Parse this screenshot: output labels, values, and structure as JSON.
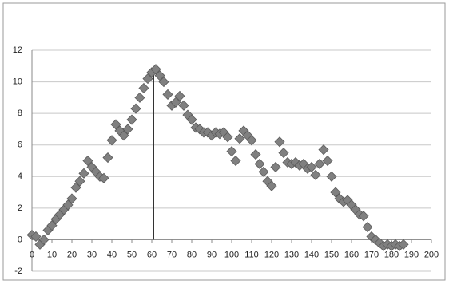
{
  "chart_data": {
    "type": "scatter",
    "x": [
      0,
      2,
      4,
      6,
      8,
      10,
      12,
      14,
      16,
      18,
      20,
      22,
      24,
      26,
      28,
      30,
      32,
      34,
      36,
      38,
      40,
      42,
      44,
      46,
      48,
      50,
      52,
      54,
      56,
      58,
      60,
      62,
      64,
      66,
      68,
      70,
      72,
      74,
      76,
      78,
      80,
      82,
      84,
      86,
      88,
      90,
      92,
      94,
      96,
      98,
      100,
      102,
      104,
      106,
      108,
      110,
      112,
      114,
      116,
      118,
      120,
      122,
      124,
      126,
      128,
      130,
      132,
      134,
      136,
      138,
      140,
      142,
      144,
      146,
      148,
      150,
      152,
      154,
      156,
      158,
      160,
      162,
      164,
      166,
      168,
      170,
      172,
      174,
      176,
      178,
      180,
      182,
      184,
      186
    ],
    "values": [
      0.3,
      0.2,
      -0.3,
      0,
      0.6,
      0.9,
      1.3,
      1.6,
      1.9,
      2.2,
      2.6,
      3.3,
      3.7,
      4.2,
      5.0,
      4.6,
      4.3,
      4.0,
      3.9,
      5.2,
      6.3,
      7.3,
      6.9,
      6.6,
      7.0,
      7.6,
      8.3,
      9.0,
      9.6,
      10.2,
      10.6,
      10.8,
      10.4,
      10.0,
      9.2,
      8.5,
      8.7,
      9.1,
      8.5,
      7.9,
      7.6,
      7.1,
      7.0,
      6.8,
      6.8,
      6.6,
      6.8,
      6.7,
      6.8,
      6.5,
      5.6,
      5.0,
      6.4,
      6.9,
      6.6,
      6.3,
      5.4,
      4.8,
      4.3,
      3.7,
      3.4,
      4.6,
      6.2,
      5.5,
      4.9,
      4.8,
      4.9,
      4.7,
      4.8,
      4.5,
      4.6,
      4.1,
      4.8,
      5.7,
      5.0,
      4.0,
      3.0,
      2.6,
      2.4,
      2.5,
      2.2,
      1.9,
      1.6,
      1.5,
      0.8,
      0.2,
      0.0,
      -0.2,
      -0.4,
      -0.3,
      -0.4,
      -0.3,
      -0.4,
      -0.3
    ],
    "color": "#808080",
    "marker_line": {
      "x": 61,
      "y_top": 10.8
    },
    "xlim": [
      0,
      200
    ],
    "xticks": [
      0,
      10,
      20,
      30,
      40,
      50,
      60,
      70,
      80,
      90,
      100,
      110,
      120,
      130,
      140,
      150,
      160,
      170,
      180,
      190,
      200
    ],
    "ylim": [
      -2,
      12
    ],
    "yticks": [
      -2,
      0,
      2,
      4,
      6,
      8,
      10,
      12
    ],
    "grid": true
  }
}
